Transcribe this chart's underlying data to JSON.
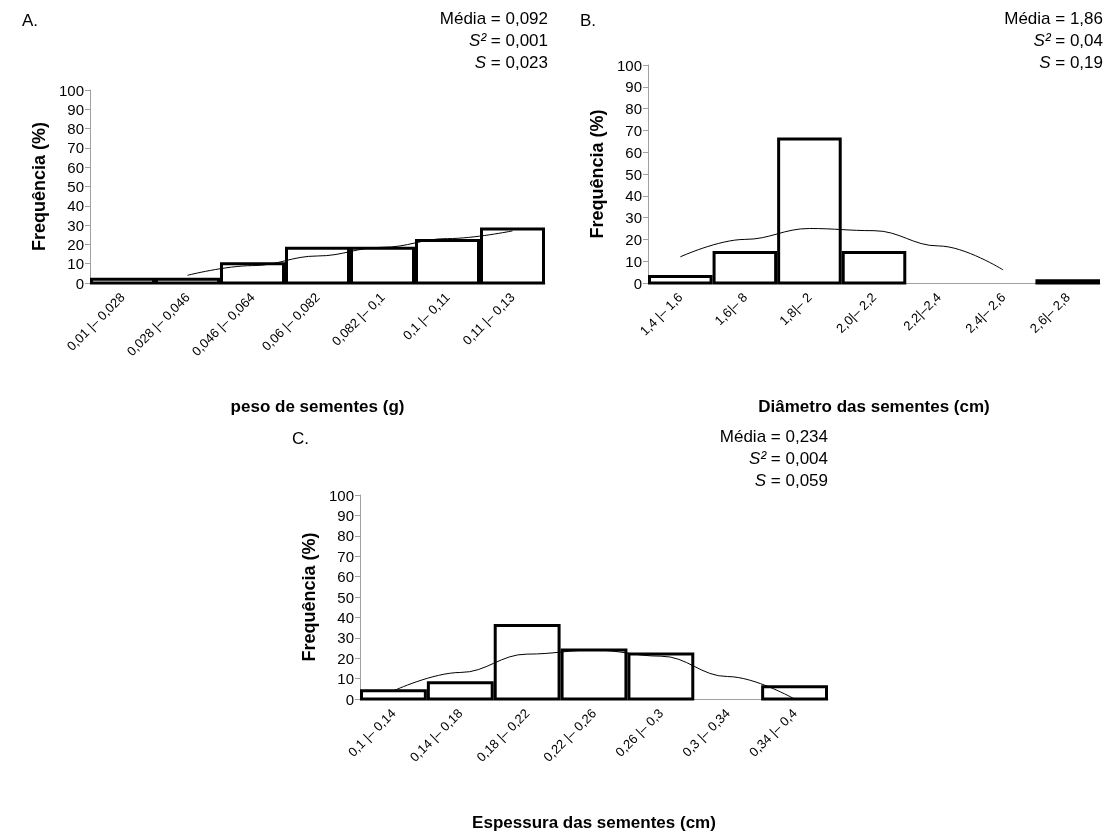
{
  "chart_data": [
    {
      "type": "bar",
      "title": "A.",
      "xlabel": "peso de sementes (g)",
      "ylabel": "Frequência (%)",
      "annotations": [
        "Média = 0,092",
        "S² = 0,001",
        "S = 0,023"
      ],
      "categories": [
        "0,01 |– 0,028",
        "0,028 |– 0,046",
        "0,046 |– 0,064",
        "0,06 |– 0,082",
        "0,082 |– 0,1",
        "0,1 |– 0,11",
        "0,11 |– 0,13"
      ],
      "series": [
        {
          "color": "#ffffff",
          "values": [
            2,
            2,
            10,
            18,
            18,
            22,
            28
          ]
        },
        {
          "type": "line",
          "color": "#000000",
          "values": [
            null,
            4,
            9,
            14,
            18.5,
            23,
            27
          ]
        }
      ],
      "ylim": [
        0,
        100
      ],
      "yticks": [
        0,
        10,
        20,
        30,
        40,
        50,
        60,
        70,
        80,
        90,
        100
      ],
      "grid": false,
      "marker": "none"
    },
    {
      "type": "bar",
      "title": "B.",
      "xlabel": "Diâmetro das sementes (cm)",
      "ylabel": "Frequência (%)",
      "annotations": [
        "Média = 1,86",
        "S² = 0,04",
        "S = 0,19"
      ],
      "categories": [
        "1,4 |– 1,6",
        "1,6|– 8",
        "1,8|– 2",
        "2,0|– 2,2",
        "2,2|–2,4",
        "2,4|– 2,6",
        "2,6|– 2,8"
      ],
      "series": [
        {
          "color": "#ffffff",
          "values": [
            3,
            14,
            66,
            14,
            0,
            0,
            1
          ]
        },
        {
          "type": "line",
          "color": "#000000",
          "values": [
            12,
            20,
            25,
            24,
            17,
            6,
            null
          ]
        }
      ],
      "ylim": [
        0,
        100
      ],
      "yticks": [
        0,
        10,
        20,
        30,
        40,
        50,
        60,
        70,
        80,
        90,
        100
      ],
      "grid": false,
      "marker": "none"
    },
    {
      "type": "bar",
      "title": "C.",
      "xlabel": "Espessura das sementes (cm)",
      "ylabel": "Frequência (%)",
      "annotations": [
        "Média = 0,234",
        "S² = 0,004",
        "S = 0,059"
      ],
      "categories": [
        "0,1 |– 0,14",
        "0,14 |– 0,18",
        "0,18 |– 0,22",
        "0,22 |– 0,26",
        "0,26 |– 0,3",
        "0,3 |– 0,34",
        "0,34 |– 0,4"
      ],
      "series": [
        {
          "color": "#ffffff",
          "values": [
            4,
            8,
            36,
            24,
            22,
            0,
            6
          ]
        },
        {
          "type": "line",
          "color": "#000000",
          "values": [
            4,
            13,
            22,
            24,
            21,
            11,
            0
          ]
        }
      ],
      "ylim": [
        0,
        100
      ],
      "yticks": [
        0,
        10,
        20,
        30,
        40,
        50,
        60,
        70,
        80,
        90,
        100
      ],
      "grid": false,
      "marker": "none"
    }
  ]
}
